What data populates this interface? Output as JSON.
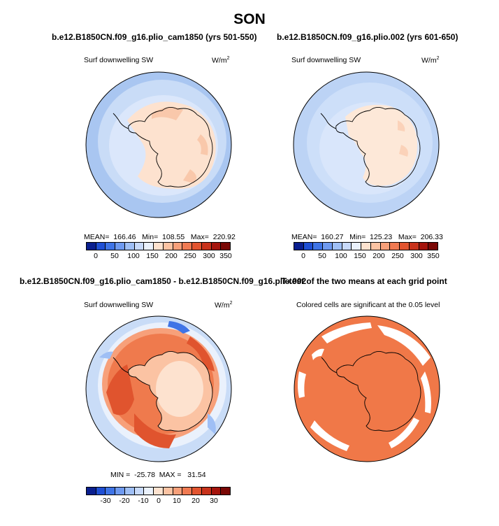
{
  "figure": {
    "title": "SON"
  },
  "panels": {
    "top_left": {
      "title": "b.e12.B1850CN.f09_g16.plio_cam1850 (yrs 501-550)",
      "variable": "Surf downwelling SW",
      "units_base": "W/m",
      "units_exp": "2",
      "mean_text": "MEAN=  166.46   Min=  108.55   Max=  220.92"
    },
    "top_right": {
      "title": "b.e12.B1850CN.f09_g16.plio.002 (yrs 601-650)",
      "variable": "Surf downwelling SW",
      "units_base": "W/m",
      "units_exp": "2",
      "mean_text": "MEAN=  160.27   Min=  125.23   Max=  206.33"
    },
    "bottom_left": {
      "title": "b.e12.B1850CN.f09_g16.plio_cam1850 - b.e12.B1850CN.f09_g16.plio.002",
      "variable": "Surf downwelling SW",
      "units_base": "W/m",
      "units_exp": "2",
      "minmax_text": "MIN =  -25.78  MAX =   31.54"
    },
    "bottom_right": {
      "title": "T-test of the two means at each grid point",
      "subtitle": "Colored cells are significant at the 0.05 level"
    }
  },
  "colorbars": {
    "absolute": {
      "ticks": [
        "0",
        "50",
        "100",
        "150",
        "200",
        "250",
        "300",
        "350"
      ],
      "colors": [
        "#0a1f8f",
        "#1f4fd4",
        "#3f74e6",
        "#6f9af0",
        "#9fbff5",
        "#c8dafa",
        "#eaf1fc",
        "#fde2cf",
        "#fbc3a3",
        "#f7a07a",
        "#f07a52",
        "#e2542f",
        "#c8321b",
        "#a5140c",
        "#7a0805"
      ]
    },
    "difference": {
      "ticks": [
        "-30",
        "-20",
        "-10",
        "0",
        "10",
        "20",
        "30"
      ],
      "colors": [
        "#0a1f8f",
        "#1f4fd4",
        "#3f74e6",
        "#6f9af0",
        "#9fbff5",
        "#c8dafa",
        "#eaf1fc",
        "#fde2cf",
        "#fbc3a3",
        "#f7a07a",
        "#f07a52",
        "#e2542f",
        "#c8321b",
        "#a5140c",
        "#7a0805"
      ]
    }
  },
  "colors": {
    "ocean_light": "#c9dcf7",
    "ocean_mid": "#9fc0ef",
    "land_warm": "#fce3cf",
    "land_warmer": "#f6c3a5",
    "diff_red": "#ef7a4d",
    "diff_darkred": "#e0542e",
    "diff_blue": "#3f74e6",
    "ttest_orange": "#f07848"
  }
}
